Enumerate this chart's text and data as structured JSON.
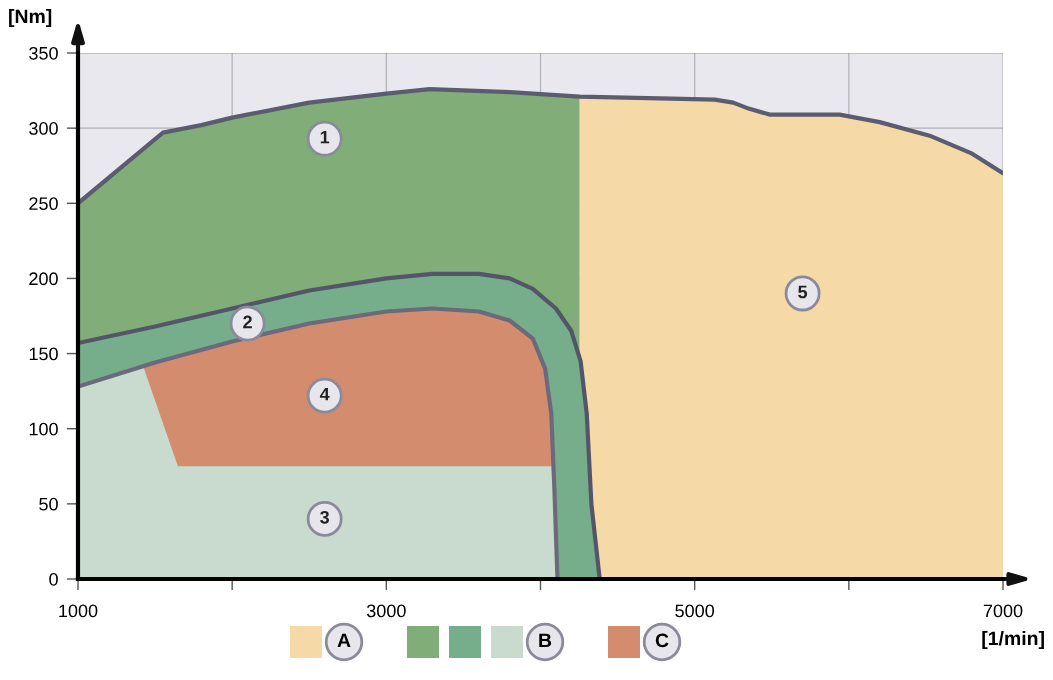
{
  "chart_data": {
    "type": "area",
    "xlabel": "[1/min]",
    "ylabel": "[Nm]",
    "xlim": [
      1000,
      7000
    ],
    "ylim": [
      0,
      350
    ],
    "xticks": [
      1000,
      {
        "value": 2000,
        "label": null
      },
      3000,
      {
        "value": 4000,
        "label": null
      },
      5000,
      {
        "value": 6000,
        "label": null
      },
      7000
    ],
    "yticks": [
      0,
      50,
      100,
      150,
      200,
      250,
      300,
      350
    ],
    "grid": true,
    "legend": "bottom",
    "series": [
      {
        "name": "A",
        "color": "#f5d9a6",
        "x": [
          4254,
          4700,
          5130,
          5250,
          5350,
          5486,
          5940,
          6200,
          6524,
          6800,
          7000
        ],
        "values": [
          321,
          320,
          319,
          317,
          313,
          309,
          309,
          304,
          295,
          283,
          270
        ]
      },
      {
        "color": "#80ad78",
        "x": [
          1000,
          1551,
          1800,
          2000,
          2500,
          3000,
          3282,
          3800,
          4254
        ],
        "values": [
          250,
          297,
          302,
          307,
          317,
          323,
          326,
          324,
          321
        ]
      },
      {
        "color": "#76ad8a",
        "line_style": "solid",
        "x": [
          1000,
          1500,
          2000,
          2500,
          3000,
          3300,
          3600,
          3800,
          3950,
          4100,
          4200,
          4260,
          4300,
          4330,
          4384
        ],
        "values": [
          157,
          168,
          180,
          192,
          200,
          203,
          203,
          200,
          193,
          180,
          165,
          145,
          110,
          50,
          0
        ]
      },
      {
        "name": "B",
        "color": "#c9dbcf",
        "x": [
          1000,
          1421,
          1648,
          4079,
          4090,
          4110
        ],
        "values": [
          128,
          142,
          75,
          75,
          60,
          0
        ]
      },
      {
        "name": "C",
        "color": "#d48c6e",
        "x": [
          1421,
          1500,
          2000,
          2500,
          3000,
          3300,
          3600,
          3800,
          3950,
          4030,
          4070,
          4079
        ],
        "values": [
          142,
          144,
          158,
          170,
          178,
          180,
          178,
          172,
          160,
          140,
          110,
          0
        ]
      },
      {
        "type": "line",
        "color": "#5c5c70",
        "x": [
          1000,
          1551,
          1800,
          2000,
          2500,
          3000,
          3282,
          3800,
          4254,
          4700,
          5130,
          5250,
          5350,
          5486,
          5940,
          6200,
          6524,
          6800,
          7000
        ],
        "values": [
          250,
          297,
          302,
          307,
          317,
          323,
          326,
          324,
          321,
          320,
          319,
          317,
          313,
          309,
          309,
          304,
          295,
          283,
          270
        ]
      },
      {
        "type": "line",
        "color": "#6a6a7c",
        "x": [
          1000,
          1500,
          2000,
          2500,
          3000,
          3300,
          3600,
          3800,
          3950,
          4030,
          4070,
          4090,
          4110
        ],
        "values": [
          128,
          144,
          158,
          170,
          178,
          180,
          178,
          172,
          160,
          140,
          110,
          60,
          0
        ]
      }
    ],
    "annotations": [
      {
        "text": "1",
        "x": 2600,
        "y": 293
      },
      {
        "text": "2",
        "x": 2100,
        "y": 170
      },
      {
        "text": "3",
        "x": 2600,
        "y": 40
      },
      {
        "text": "4",
        "x": 2600,
        "y": 122
      },
      {
        "text": "5",
        "x": 5700,
        "y": 190
      }
    ]
  }
}
